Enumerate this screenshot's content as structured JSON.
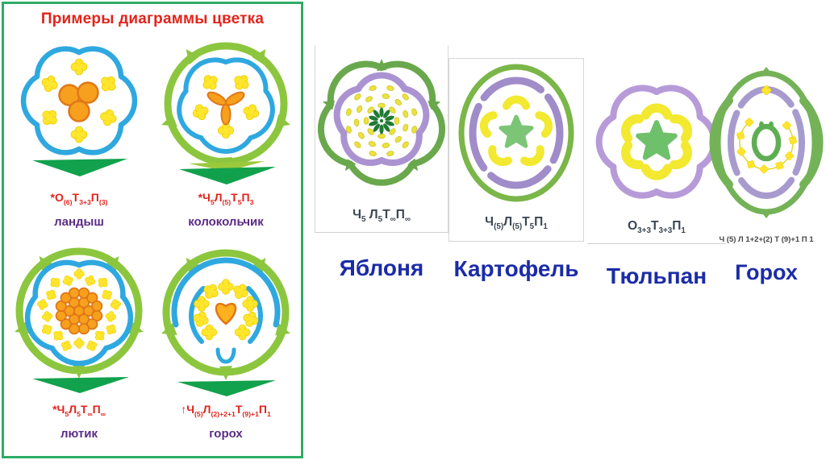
{
  "slide": {
    "left_panel": {
      "title": "Примеры диаграммы цветка",
      "flowers": [
        {
          "name": "ландыш",
          "formula": [
            {
              "t": "*О"
            },
            {
              "s": "(6)"
            },
            {
              "t": "Т"
            },
            {
              "s": "3+3"
            },
            {
              "t": "П"
            },
            {
              "s": "(3)"
            }
          ]
        },
        {
          "name": "колокольчик",
          "formula": [
            {
              "t": "*Ч"
            },
            {
              "s": "5"
            },
            {
              "t": "Л"
            },
            {
              "s": "(5)"
            },
            {
              "t": "Т"
            },
            {
              "s": "5"
            },
            {
              "t": "П"
            },
            {
              "s": "3"
            }
          ]
        },
        {
          "name": "лютик",
          "formula": [
            {
              "t": "*Ч"
            },
            {
              "s": "5"
            },
            {
              "t": "Л"
            },
            {
              "s": "5"
            },
            {
              "t": "Т"
            },
            {
              "s": "∞"
            },
            {
              "t": "П"
            },
            {
              "s": "∞"
            }
          ]
        },
        {
          "name": "горох",
          "formula": [
            {
              "t": "↑Ч"
            },
            {
              "s": "(5)"
            },
            {
              "t": "Л"
            },
            {
              "s": "(2)+2+1"
            },
            {
              "t": "Т"
            },
            {
              "s": "(9)+1"
            },
            {
              "t": "П"
            },
            {
              "s": "1"
            }
          ]
        }
      ]
    },
    "right_panel": {
      "flowers": [
        {
          "name": "Яблоня",
          "formula": [
            {
              "t": "Ч"
            },
            {
              "s": "5"
            },
            {
              "t": " Л"
            },
            {
              "s": "5"
            },
            {
              "t": "Т"
            },
            {
              "s": "∞"
            },
            {
              "t": "П"
            },
            {
              "s": "∞"
            }
          ]
        },
        {
          "name": "Картофель",
          "formula": [
            {
              "t": "Ч"
            },
            {
              "s": "(5)"
            },
            {
              "t": "Л"
            },
            {
              "s": "(5)"
            },
            {
              "t": "Т"
            },
            {
              "s": "5"
            },
            {
              "t": "П"
            },
            {
              "s": "1"
            }
          ]
        },
        {
          "name": "Тюльпан",
          "formula": [
            {
              "t": "О"
            },
            {
              "s": "3+3"
            },
            {
              "t": "Т"
            },
            {
              "s": "3+3"
            },
            {
              "t": "П"
            },
            {
              "s": "1"
            }
          ]
        },
        {
          "name": "Горох",
          "formula": [
            {
              "t": "Ч (5) Л 1+2+(2) Т (9)+1 П 1"
            }
          ]
        }
      ]
    },
    "colors": {
      "title_red": "#E2231A",
      "panel_border_green": "#2FAC66",
      "left_name_purple": "#5B2C86",
      "right_name_blue": "#1B2CA8",
      "petal_blue": "#2FA8E0",
      "sepal_light_green": "#8CC63E",
      "bract_dark_green": "#12A14C",
      "anther_yellow": "#FFE62E",
      "pistil_orange": "#F7A01D",
      "right_petal_purple": "#AB93D2",
      "right_sepal_green": "#69A84C",
      "pistil_star_green": "#7CC576"
    }
  }
}
